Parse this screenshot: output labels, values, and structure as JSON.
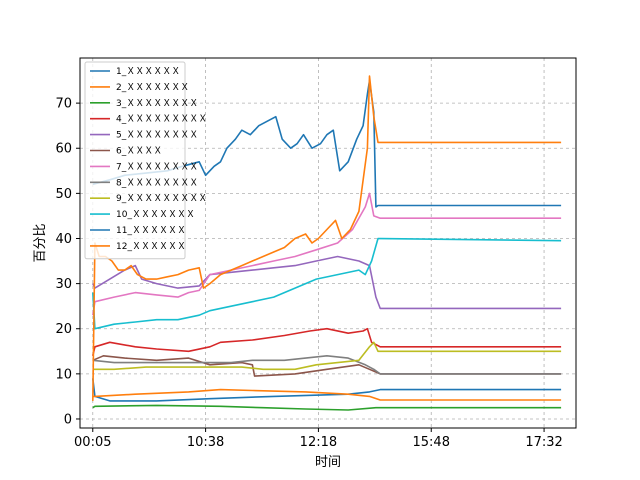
{
  "chart_data": {
    "type": "line",
    "title": "",
    "xlabel": "时间",
    "ylabel": "百分比",
    "ylim": [
      -2,
      80
    ],
    "xlim": [
      -6,
      227
    ],
    "grid": true,
    "legend_position": "top-left",
    "x_ticks": [
      {
        "x": 0,
        "label": "00:05"
      },
      {
        "x": 53,
        "label": "10:38"
      },
      {
        "x": 106,
        "label": "12:18"
      },
      {
        "x": 159,
        "label": "15:48"
      },
      {
        "x": 212,
        "label": "17:32"
      }
    ],
    "y_ticks": [
      0,
      10,
      20,
      30,
      40,
      50,
      60,
      70
    ],
    "series": [
      {
        "name": "1_ＸＸＸＸＸＸ",
        "color": "#1f77b4",
        "points": [
          [
            0,
            9
          ],
          [
            1,
            5
          ],
          [
            8,
            4
          ],
          [
            30,
            4
          ],
          [
            55,
            4.5
          ],
          [
            85,
            5
          ],
          [
            120,
            5.5
          ],
          [
            130,
            6
          ],
          [
            135,
            6.5
          ],
          [
            220,
            6.5
          ]
        ]
      },
      {
        "name": "2_ＸＸＸＸＸＸＸ",
        "color": "#ff7f0e",
        "points": [
          [
            0,
            5
          ],
          [
            1,
            5
          ],
          [
            20,
            5.5
          ],
          [
            45,
            6
          ],
          [
            60,
            6.5
          ],
          [
            75,
            6.3
          ],
          [
            100,
            6
          ],
          [
            120,
            5.5
          ],
          [
            130,
            5
          ],
          [
            135,
            4.2
          ],
          [
            220,
            4.2
          ]
        ]
      },
      {
        "name": "3_ＸＸＸＸＸＸＸＸ",
        "color": "#2ca02c",
        "points": [
          [
            0,
            2.5
          ],
          [
            1,
            2.8
          ],
          [
            30,
            3
          ],
          [
            60,
            2.8
          ],
          [
            80,
            2.5
          ],
          [
            100,
            2.2
          ],
          [
            120,
            2
          ],
          [
            133,
            2.5
          ],
          [
            220,
            2.5
          ]
        ]
      },
      {
        "name": "4_ＸＸＸＸＸＸＸＸＸ",
        "color": "#d62728",
        "points": [
          [
            0,
            14
          ],
          [
            1,
            16
          ],
          [
            8,
            17
          ],
          [
            20,
            16
          ],
          [
            30,
            15.5
          ],
          [
            45,
            15
          ],
          [
            55,
            16
          ],
          [
            60,
            17
          ],
          [
            75,
            17.5
          ],
          [
            90,
            18.5
          ],
          [
            102,
            19.5
          ],
          [
            110,
            20
          ],
          [
            120,
            19
          ],
          [
            127,
            19.5
          ],
          [
            129,
            20
          ],
          [
            131,
            17
          ],
          [
            135,
            16
          ],
          [
            220,
            16
          ]
        ]
      },
      {
        "name": "5_ＸＸＸＸＸＸＸＸ",
        "color": "#9467bd",
        "points": [
          [
            0,
            30
          ],
          [
            1,
            29
          ],
          [
            8,
            31
          ],
          [
            15,
            33
          ],
          [
            20,
            34
          ],
          [
            23,
            31
          ],
          [
            30,
            30
          ],
          [
            40,
            29
          ],
          [
            50,
            29.5
          ],
          [
            55,
            32
          ],
          [
            65,
            32.5
          ],
          [
            75,
            33
          ],
          [
            85,
            33.5
          ],
          [
            95,
            34
          ],
          [
            105,
            35
          ],
          [
            115,
            36
          ],
          [
            125,
            35
          ],
          [
            130,
            34
          ],
          [
            133,
            27
          ],
          [
            135,
            24.5
          ],
          [
            220,
            24.5
          ]
        ]
      },
      {
        "name": "6_ＸＸＸＸ",
        "color": "#8c564b",
        "points": [
          [
            0,
            13
          ],
          [
            5,
            14
          ],
          [
            15,
            13.5
          ],
          [
            30,
            13
          ],
          [
            45,
            13.5
          ],
          [
            55,
            12
          ],
          [
            70,
            12.5
          ],
          [
            75,
            12
          ],
          [
            76,
            9.5
          ],
          [
            95,
            10
          ],
          [
            110,
            11
          ],
          [
            125,
            12
          ],
          [
            130,
            11
          ],
          [
            135,
            10
          ],
          [
            220,
            10
          ]
        ]
      },
      {
        "name": "7_ＸＸＸＸＸＸＸＸ",
        "color": "#e377c2",
        "points": [
          [
            0,
            23
          ],
          [
            1,
            26
          ],
          [
            10,
            27
          ],
          [
            20,
            28
          ],
          [
            30,
            27.5
          ],
          [
            40,
            27
          ],
          [
            45,
            28
          ],
          [
            50,
            28.5
          ],
          [
            55,
            32
          ],
          [
            65,
            33
          ],
          [
            75,
            34
          ],
          [
            85,
            35
          ],
          [
            95,
            36
          ],
          [
            105,
            37.5
          ],
          [
            115,
            39
          ],
          [
            122,
            42
          ],
          [
            128,
            47
          ],
          [
            130,
            50
          ],
          [
            132,
            45
          ],
          [
            135,
            44.5
          ],
          [
            220,
            44.5
          ]
        ]
      },
      {
        "name": "8_ＸＸＸＸＸＸＸＸ",
        "color": "#7f7f7f",
        "points": [
          [
            0,
            13
          ],
          [
            10,
            12.5
          ],
          [
            25,
            12.5
          ],
          [
            40,
            12.5
          ],
          [
            50,
            12.5
          ],
          [
            65,
            12.5
          ],
          [
            75,
            13
          ],
          [
            90,
            13
          ],
          [
            100,
            13.5
          ],
          [
            110,
            14
          ],
          [
            120,
            13.5
          ],
          [
            128,
            12
          ],
          [
            132,
            11
          ],
          [
            135,
            10
          ],
          [
            220,
            10
          ]
        ]
      },
      {
        "name": "9_ＸＸＸＸＸＸＸＸＸ",
        "color": "#bcbd22",
        "points": [
          [
            0,
            11
          ],
          [
            10,
            11
          ],
          [
            25,
            11.5
          ],
          [
            40,
            11.5
          ],
          [
            55,
            11.5
          ],
          [
            70,
            11.5
          ],
          [
            80,
            11
          ],
          [
            95,
            11
          ],
          [
            105,
            12
          ],
          [
            115,
            12.5
          ],
          [
            125,
            13
          ],
          [
            130,
            16
          ],
          [
            132,
            17
          ],
          [
            134,
            15
          ],
          [
            220,
            15
          ]
        ]
      },
      {
        "name": "10_ＸＸＸＸＸＸＸ",
        "color": "#17becf",
        "points": [
          [
            0,
            28
          ],
          [
            1,
            20
          ],
          [
            10,
            21
          ],
          [
            20,
            21.5
          ],
          [
            30,
            22
          ],
          [
            40,
            22
          ],
          [
            50,
            23
          ],
          [
            55,
            24
          ],
          [
            65,
            25
          ],
          [
            75,
            26
          ],
          [
            85,
            27
          ],
          [
            95,
            29
          ],
          [
            105,
            31
          ],
          [
            115,
            32
          ],
          [
            125,
            33
          ],
          [
            128,
            32
          ],
          [
            131,
            35
          ],
          [
            134,
            40
          ],
          [
            220,
            39.5
          ]
        ]
      },
      {
        "name": "11_ＸＸＸＸＸＸ",
        "color": "#1f77b4",
        "points": [
          [
            0,
            52
          ],
          [
            8,
            53
          ],
          [
            15,
            54
          ],
          [
            25,
            54.5
          ],
          [
            35,
            55
          ],
          [
            42,
            56
          ],
          [
            50,
            57
          ],
          [
            53,
            54
          ],
          [
            57,
            56
          ],
          [
            60,
            57
          ],
          [
            63,
            60
          ],
          [
            67,
            62
          ],
          [
            70,
            64
          ],
          [
            74,
            63
          ],
          [
            78,
            65
          ],
          [
            82,
            66
          ],
          [
            86,
            67
          ],
          [
            89,
            62
          ],
          [
            93,
            60
          ],
          [
            96,
            61
          ],
          [
            99,
            63
          ],
          [
            103,
            60
          ],
          [
            107,
            61
          ],
          [
            110,
            63
          ],
          [
            113,
            64
          ],
          [
            116,
            55
          ],
          [
            120,
            57
          ],
          [
            124,
            62
          ],
          [
            127,
            65
          ],
          [
            129,
            72
          ],
          [
            130,
            75
          ],
          [
            132,
            68
          ],
          [
            133,
            47
          ],
          [
            134,
            47.3
          ],
          [
            220,
            47.3
          ]
        ]
      },
      {
        "name": "12_ＸＸＸＸＸＸ",
        "color": "#ff7f0e",
        "points": [
          [
            0,
            4
          ],
          [
            1,
            39
          ],
          [
            3,
            36
          ],
          [
            6,
            36
          ],
          [
            9,
            35
          ],
          [
            12,
            33
          ],
          [
            15,
            33
          ],
          [
            18,
            34
          ],
          [
            21,
            32
          ],
          [
            25,
            31
          ],
          [
            30,
            31
          ],
          [
            35,
            31.5
          ],
          [
            40,
            32
          ],
          [
            45,
            33
          ],
          [
            50,
            33.5
          ],
          [
            52,
            29
          ],
          [
            55,
            30
          ],
          [
            60,
            32
          ],
          [
            65,
            33
          ],
          [
            70,
            34
          ],
          [
            75,
            35
          ],
          [
            80,
            36
          ],
          [
            85,
            37
          ],
          [
            90,
            38
          ],
          [
            95,
            40
          ],
          [
            100,
            41
          ],
          [
            103,
            39
          ],
          [
            106,
            40
          ],
          [
            110,
            42
          ],
          [
            114,
            44
          ],
          [
            117,
            40
          ],
          [
            121,
            42
          ],
          [
            125,
            46
          ],
          [
            129,
            60
          ],
          [
            130,
            76
          ],
          [
            132,
            67
          ],
          [
            134,
            61.3
          ],
          [
            220,
            61.3
          ]
        ]
      }
    ]
  }
}
